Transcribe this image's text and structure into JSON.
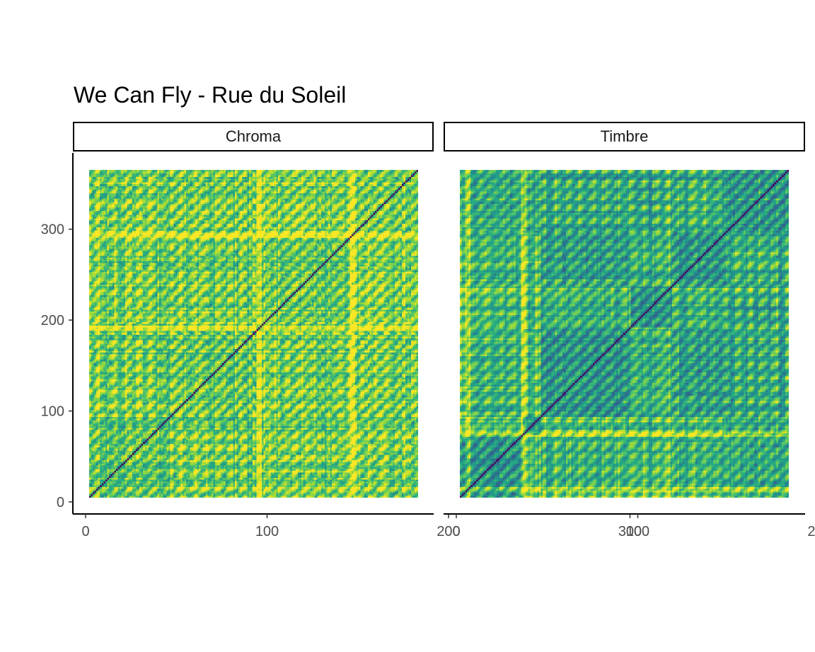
{
  "title": "We Can Fly - Rue du Soleil",
  "facets": [
    {
      "label": "Chroma"
    },
    {
      "label": "Timbre"
    }
  ],
  "chart_data": {
    "type": "heatmap",
    "title": "We Can Fly - Rue du Soleil",
    "subtitle": "",
    "xlabel": "",
    "ylabel": "",
    "facets": [
      "Chroma",
      "Timbre"
    ],
    "x_ticks": [
      0,
      100,
      200,
      300
    ],
    "y_ticks": [
      0,
      100,
      200,
      300
    ],
    "x_range": [
      0,
      366
    ],
    "y_range": [
      0,
      366
    ],
    "colormap": "viridis",
    "grid": false,
    "description": "Self-similarity matrices (distance between audio segments); dark diagonal of zero distance",
    "chroma_boundaries": [
      80,
      185,
      290
    ],
    "timbre_boundaries": [
      70,
      90,
      190,
      235,
      295
    ],
    "x_tick_labels": [
      "0",
      "100",
      "200",
      "300"
    ],
    "y_tick_labels": [
      "0",
      "100",
      "200",
      "300"
    ]
  },
  "colors": {
    "viridis_low": "#440154",
    "viridis_mid": "#21908c",
    "viridis_high": "#fde725"
  }
}
